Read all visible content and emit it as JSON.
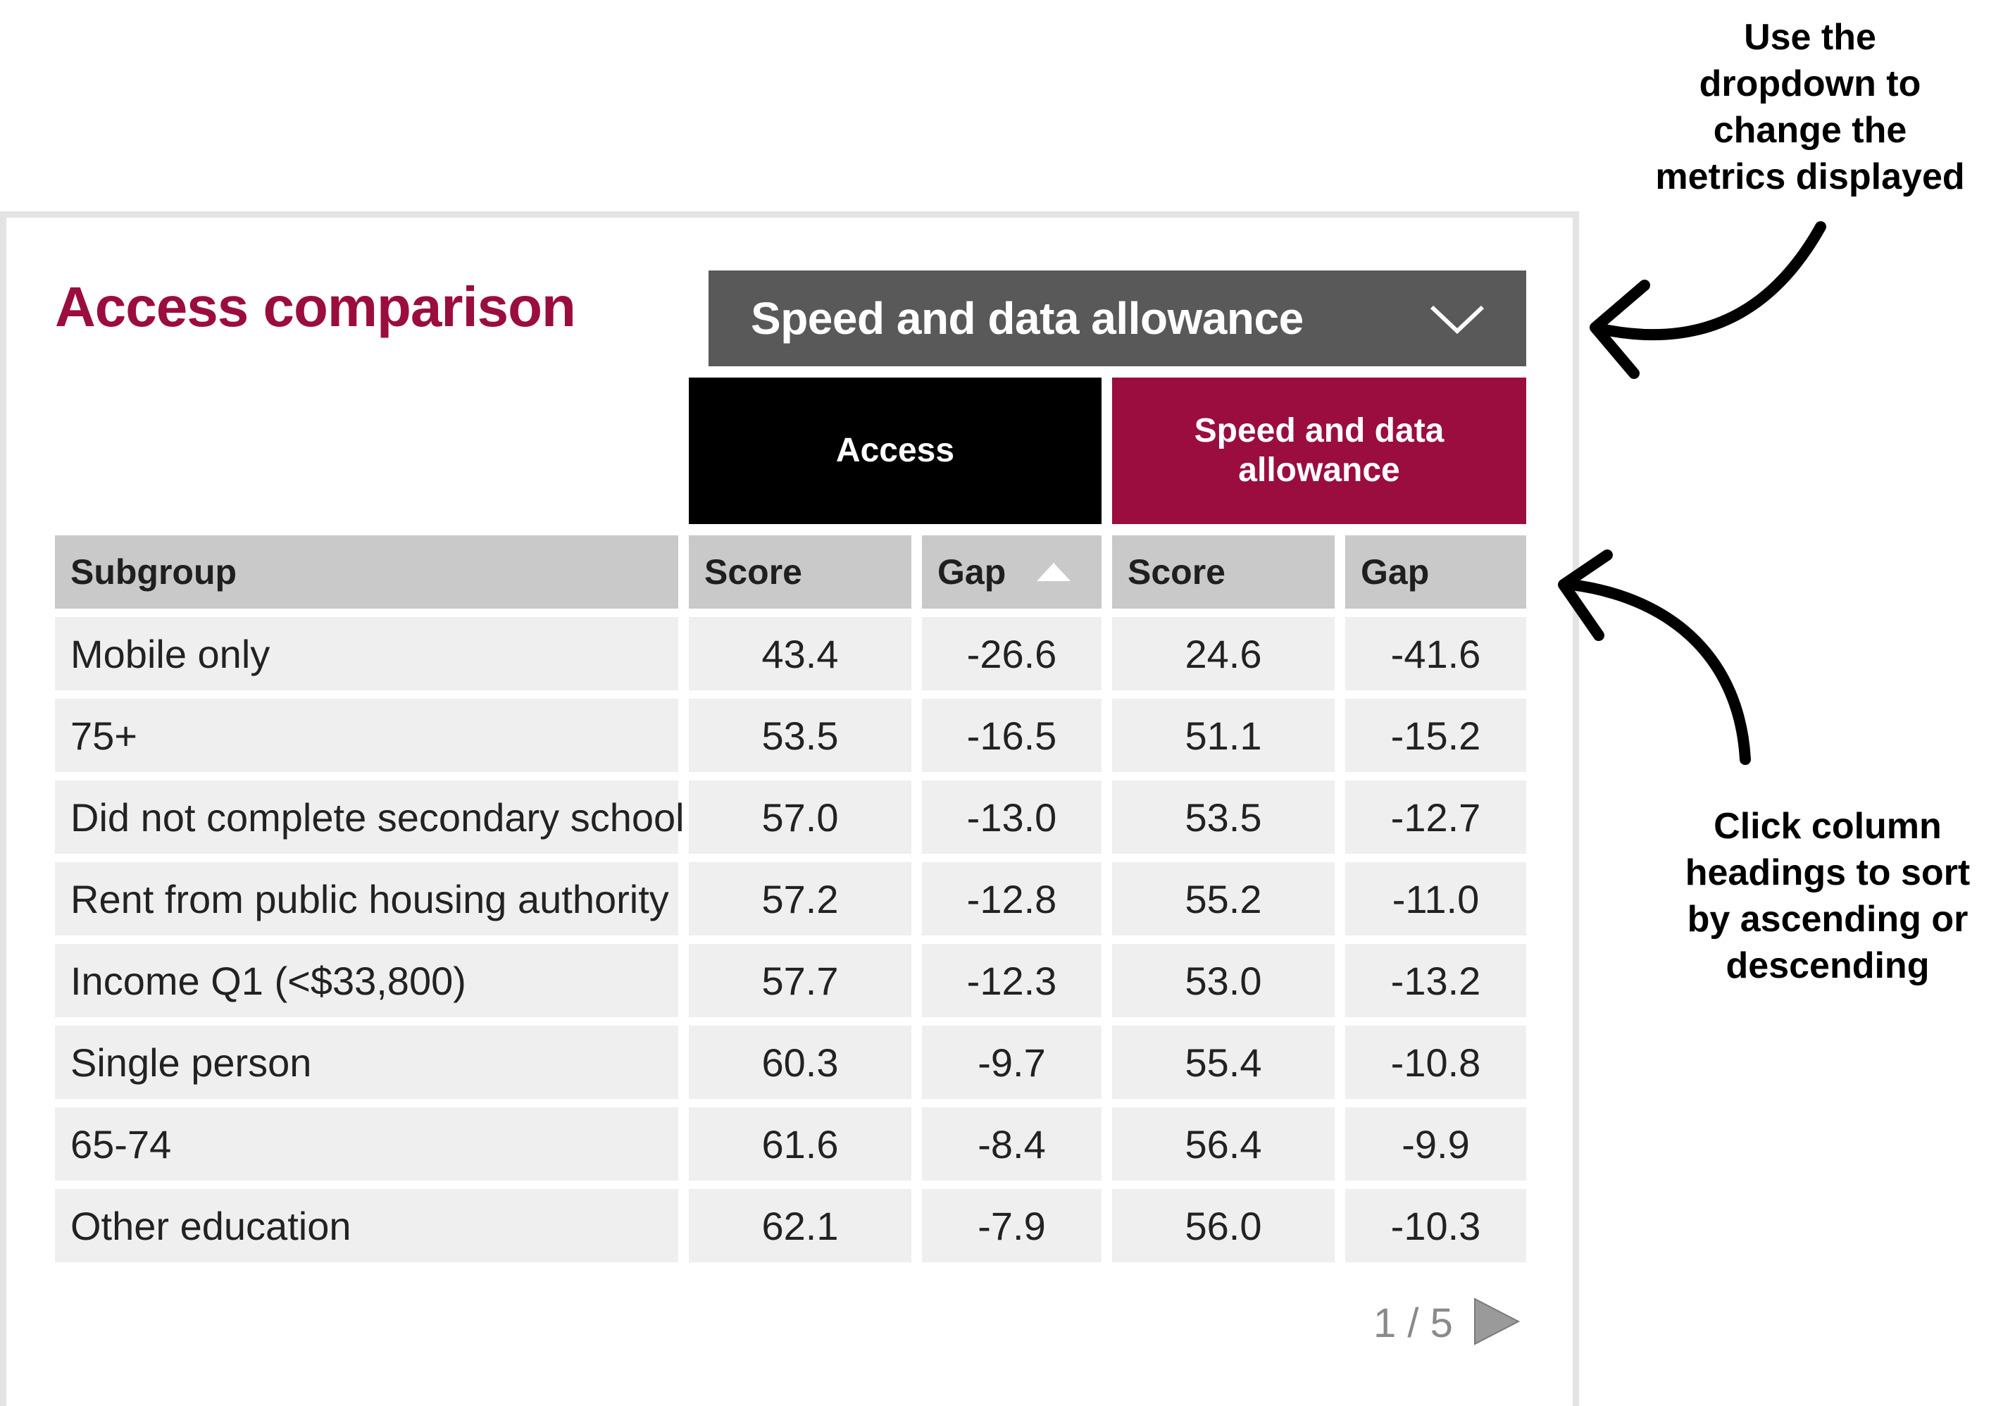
{
  "title": "Access comparison",
  "dropdown": {
    "selected": "Speed and data allowance",
    "icon": "chevron-down-icon"
  },
  "groups": {
    "access": "Access",
    "speed": "Speed and data allowance"
  },
  "columns": {
    "subgroup": "Subgroup",
    "access_score": "Score",
    "access_gap": "Gap",
    "speed_score": "Score",
    "speed_gap": "Gap",
    "sort_indicator": "sort-ascending-icon"
  },
  "rows": [
    {
      "subgroup": "Mobile only",
      "access_score": "43.4",
      "access_gap": "-26.6",
      "speed_score": "24.6",
      "speed_gap": "-41.6"
    },
    {
      "subgroup": "75+",
      "access_score": "53.5",
      "access_gap": "-16.5",
      "speed_score": "51.1",
      "speed_gap": "-15.2"
    },
    {
      "subgroup": "Did not complete secondary school",
      "access_score": "57.0",
      "access_gap": "-13.0",
      "speed_score": "53.5",
      "speed_gap": "-12.7"
    },
    {
      "subgroup": "Rent from public housing authority",
      "access_score": "57.2",
      "access_gap": "-12.8",
      "speed_score": "55.2",
      "speed_gap": "-11.0"
    },
    {
      "subgroup": "Income Q1 (<$33,800)",
      "access_score": "57.7",
      "access_gap": "-12.3",
      "speed_score": "53.0",
      "speed_gap": "-13.2"
    },
    {
      "subgroup": "Single person",
      "access_score": "60.3",
      "access_gap": "-9.7",
      "speed_score": "55.4",
      "speed_gap": "-10.8"
    },
    {
      "subgroup": "65-74",
      "access_score": "61.6",
      "access_gap": "-8.4",
      "speed_score": "56.4",
      "speed_gap": "-9.9"
    },
    {
      "subgroup": "Other education",
      "access_score": "62.1",
      "access_gap": "-7.9",
      "speed_score": "56.0",
      "speed_gap": "-10.3"
    }
  ],
  "pager": {
    "text": "1 / 5",
    "next_icon": "play-next-icon"
  },
  "annotations": {
    "top": [
      "Use the",
      "dropdown to",
      "change the",
      "metrics displayed"
    ],
    "bottom": [
      "Click column",
      "headings to sort",
      "by ascending or",
      "descending"
    ]
  },
  "colors": {
    "accent": "#9b0d3f",
    "dropdown_bg": "#595959",
    "header_bg": "#c9c9c9",
    "row_bg": "#efefef"
  }
}
